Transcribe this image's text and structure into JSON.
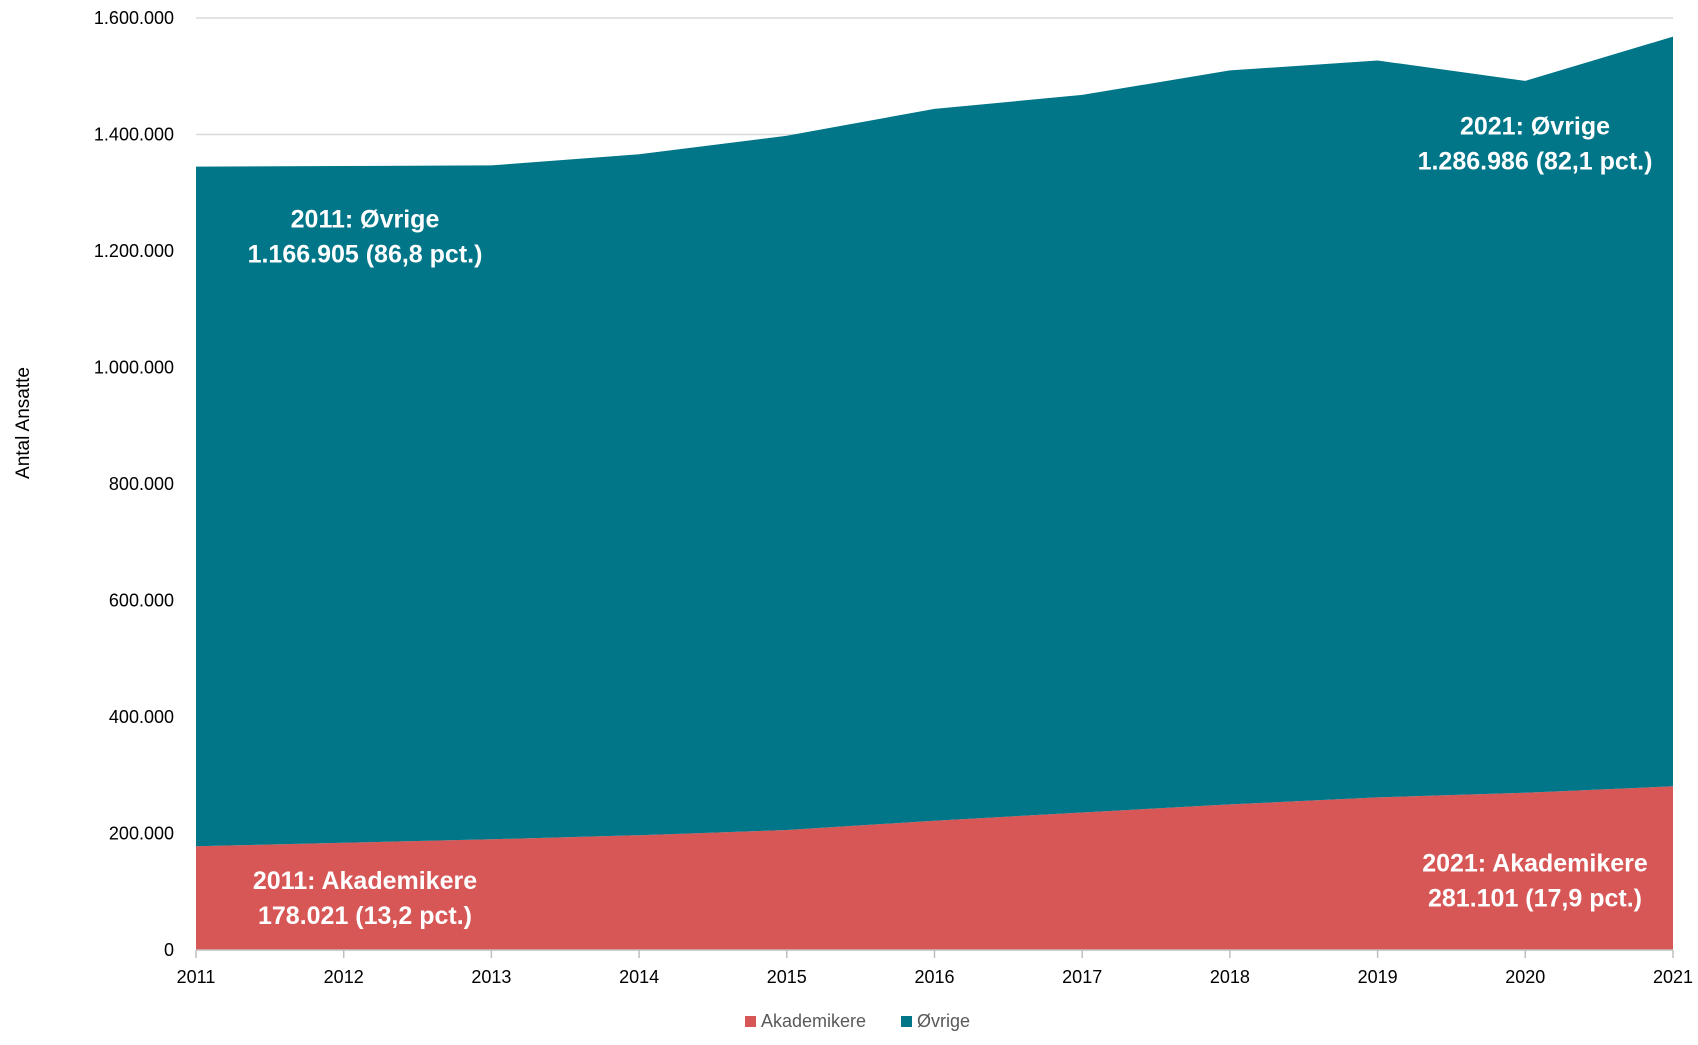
{
  "chart_data": {
    "type": "area",
    "stacked": true,
    "x": [
      "2011",
      "2012",
      "2013",
      "2014",
      "2015",
      "2016",
      "2017",
      "2018",
      "2019",
      "2020",
      "2021"
    ],
    "series": [
      {
        "name": "Akademikere",
        "color": "#d75656",
        "values": [
          178021,
          184000,
          190000,
          197000,
          206000,
          222000,
          236000,
          250000,
          262000,
          270000,
          281101
        ]
      },
      {
        "name": "Øvrige",
        "color": "#007688",
        "values": [
          1166905,
          1162000,
          1157000,
          1169000,
          1192000,
          1222000,
          1232000,
          1260000,
          1265000,
          1222000,
          1286986
        ]
      }
    ],
    "ylabel": "Antal Ansatte",
    "xlabel": "",
    "ylim": [
      0,
      1600000
    ],
    "yticks": [
      0,
      200000,
      400000,
      600000,
      800000,
      1000000,
      1200000,
      1400000,
      1600000
    ],
    "ytick_labels": [
      "0",
      "200.000",
      "400.000",
      "600.000",
      "800.000",
      "1.000.000",
      "1.200.000",
      "1.400.000",
      "1.600.000"
    ],
    "grid": "horizontal",
    "legend_position": "bottom",
    "annotations": [
      {
        "lines": [
          "2011: Øvrige",
          "1.166.905 (86,8 pct.)"
        ],
        "x": "2011",
        "y": 1240000
      },
      {
        "lines": [
          "2021: Øvrige",
          "1.286.986 (82,1 pct.)"
        ],
        "x": "2021",
        "y": 1400000
      },
      {
        "lines": [
          "2011: Akademikere",
          "178.021 (13,2 pct.)"
        ],
        "x": "2011",
        "y": 105000
      },
      {
        "lines": [
          "2021: Akademikere",
          "281.101 (17,9 pct.)"
        ],
        "x": "2021",
        "y": 135000
      }
    ]
  }
}
